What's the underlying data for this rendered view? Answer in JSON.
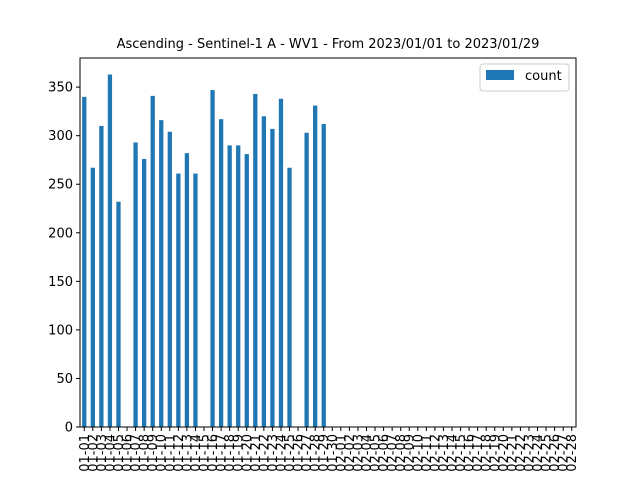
{
  "chart_data": {
    "type": "bar",
    "title": "Ascending - Sentinel-1 A - WV1 - From 2023/01/01 to 2023/01/29",
    "xlabel": "",
    "ylabel": "",
    "ylim": [
      0,
      380
    ],
    "yticks": [
      0,
      50,
      100,
      150,
      200,
      250,
      300,
      350
    ],
    "grid": false,
    "legend_position": "top-right",
    "categories": [
      "01-01",
      "01-02",
      "01-03",
      "01-04",
      "01-05",
      "01-06",
      "01-07",
      "01-08",
      "01-09",
      "01-10",
      "01-11",
      "01-12",
      "01-13",
      "01-14",
      "01-15",
      "01-16",
      "01-17",
      "01-18",
      "01-19",
      "01-20",
      "01-21",
      "01-22",
      "01-23",
      "01-24",
      "01-25",
      "01-26",
      "01-27",
      "01-28",
      "01-29",
      "01-30",
      "02-01",
      "02-02",
      "02-03",
      "02-04",
      "02-05",
      "02-06",
      "02-07",
      "02-08",
      "02-09",
      "02-10",
      "02-11",
      "02-12",
      "02-13",
      "02-14",
      "02-15",
      "02-16",
      "02-17",
      "02-18",
      "02-19",
      "02-20",
      "02-21",
      "02-22",
      "02-23",
      "02-24",
      "02-25",
      "02-26",
      "02-27",
      "02-28"
    ],
    "series": [
      {
        "name": "count",
        "color": "#1f77b4",
        "values": [
          340,
          267,
          310,
          363,
          232,
          0,
          293,
          276,
          341,
          316,
          304,
          261,
          282,
          261,
          0,
          347,
          317,
          290,
          290,
          281,
          343,
          320,
          307,
          338,
          267,
          0,
          303,
          331,
          312,
          0,
          0,
          0,
          0,
          0,
          0,
          0,
          0,
          0,
          0,
          0,
          0,
          0,
          0,
          0,
          0,
          0,
          0,
          0,
          0,
          0,
          0,
          0,
          0,
          0,
          0,
          0,
          0,
          0
        ]
      }
    ]
  }
}
